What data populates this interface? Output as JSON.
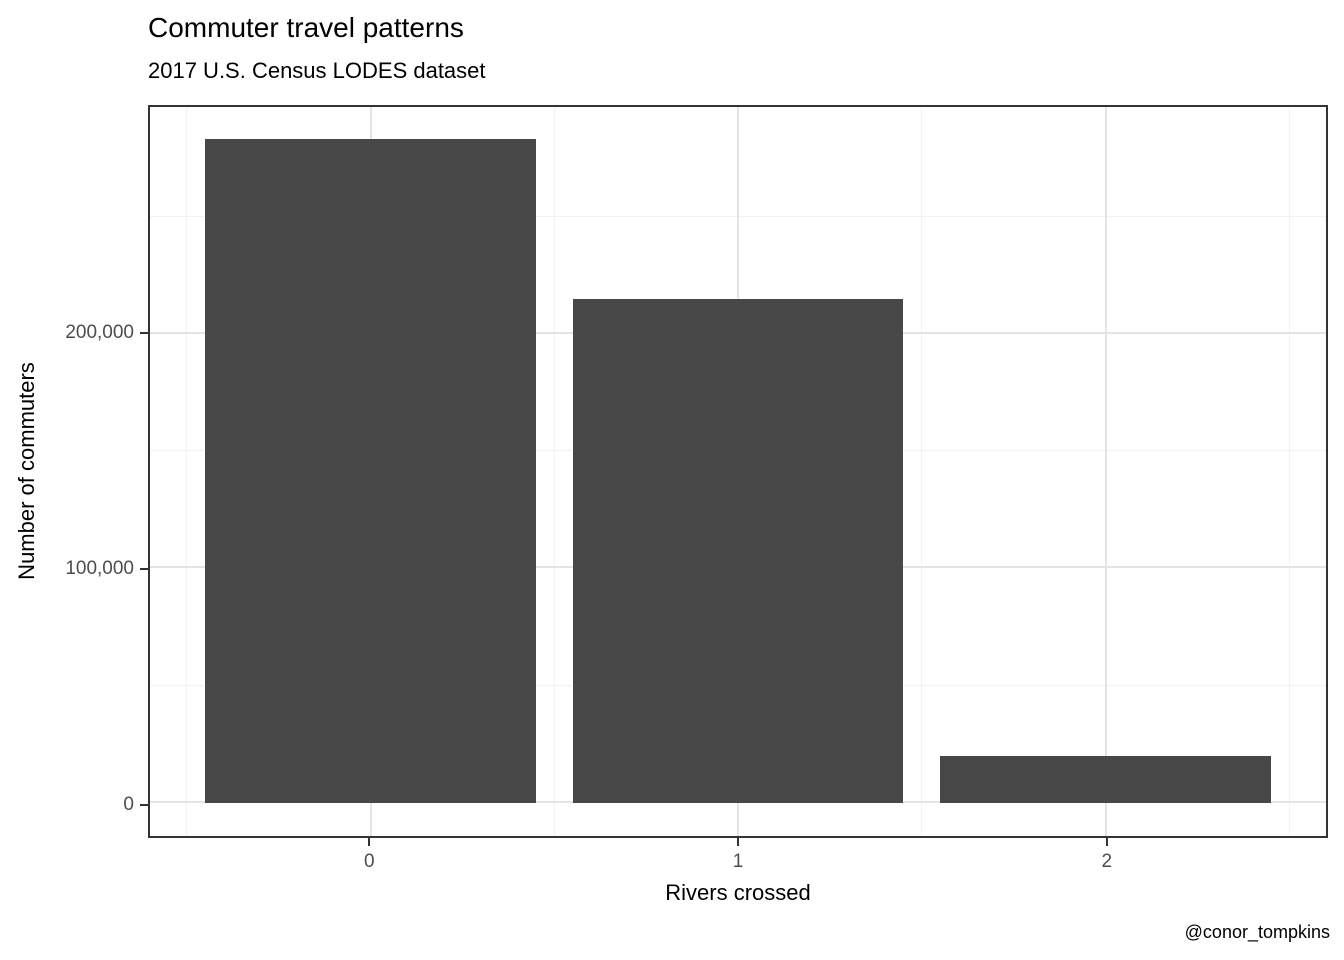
{
  "chart_data": {
    "type": "bar",
    "title": "Commuter travel patterns",
    "subtitle": "2017 U.S. Census LODES dataset",
    "caption": "@conor_tompkins",
    "xlabel": "Rivers crossed",
    "ylabel": "Number of commuters",
    "categories": [
      "0",
      "1",
      "2"
    ],
    "values": [
      283000,
      215000,
      20000
    ],
    "bar_width": 0.9,
    "x_range": [
      -0.6,
      2.6
    ],
    "ylim": [
      -14150,
      296850
    ],
    "y_major_ticks": [
      0,
      100000,
      200000
    ],
    "y_tick_labels": [
      "0",
      "100,000",
      "200,000"
    ],
    "y_minor_ticks": [
      50000,
      150000,
      250000
    ],
    "x_minor_positions": [
      -0.5,
      0.5,
      1.5,
      2.5
    ],
    "grid": true,
    "legend": "none",
    "colors": {
      "bar_fill": "#474747",
      "panel_border": "#333333",
      "grid_major": "#e4e4e4",
      "grid_minor": "#f2f2f2",
      "axis_text": "#4d4d4d",
      "title_text": "#000000"
    }
  }
}
